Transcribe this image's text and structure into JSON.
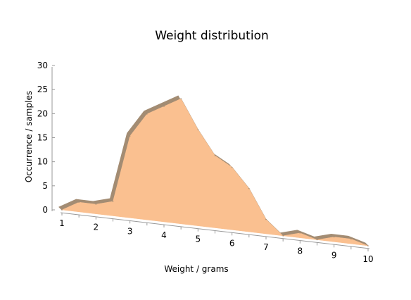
{
  "chart_data": {
    "type": "area",
    "title": "Weight distribution",
    "xlabel": "Weight / grams",
    "ylabel": "Occurrence / samples",
    "x_ticks": [
      1,
      2,
      3,
      4,
      5,
      6,
      7,
      8,
      9,
      10
    ],
    "y_ticks": [
      0,
      5,
      10,
      15,
      20,
      25,
      30
    ],
    "xlim": [
      1,
      10
    ],
    "ylim": [
      0,
      30
    ],
    "grid": false,
    "legend": "none",
    "fill_color": "#FAC090",
    "side_color": "#A38C73",
    "series": [
      {
        "x": [
          1.0,
          1.5,
          2.0,
          2.5,
          3.0,
          3.5,
          4.0,
          4.5,
          5.0,
          5.5,
          6.0,
          6.5,
          7.0,
          7.5,
          8.0,
          8.5,
          9.0,
          9.5,
          10.0
        ],
        "values": [
          0,
          2,
          2,
          3,
          17,
          22,
          24,
          26,
          20,
          15,
          13,
          9,
          3,
          0,
          1,
          0,
          1,
          1,
          0
        ]
      }
    ]
  }
}
